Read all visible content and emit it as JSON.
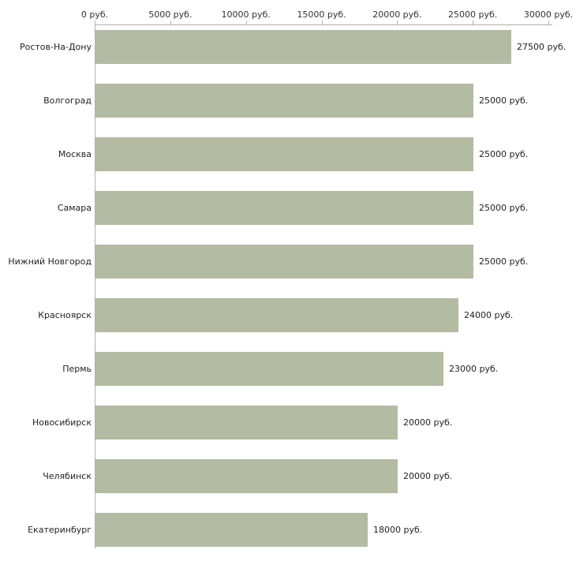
{
  "chart_data": {
    "type": "bar",
    "orientation": "horizontal",
    "title": "",
    "xlabel": "",
    "ylabel": "",
    "xlim": [
      0,
      30000
    ],
    "grid": false,
    "legend": "none",
    "bar_color": "#b3bba2",
    "x_ticks": [
      {
        "value": 0,
        "label": "0 руб."
      },
      {
        "value": 5000,
        "label": "5000 руб."
      },
      {
        "value": 10000,
        "label": "10000 руб."
      },
      {
        "value": 15000,
        "label": "15000 руб."
      },
      {
        "value": 20000,
        "label": "20000 руб."
      },
      {
        "value": 25000,
        "label": "25000 руб."
      },
      {
        "value": 30000,
        "label": "30000 руб."
      }
    ],
    "categories": [
      "Ростов-На-Дону",
      "Волгоград",
      "Москва",
      "Самара",
      "Нижний Новгород",
      "Красноярск",
      "Пермь",
      "Новосибирск",
      "Челябинск",
      "Екатеринбург"
    ],
    "values": [
      27500,
      25000,
      25000,
      25000,
      25000,
      24000,
      23000,
      20000,
      20000,
      18000
    ],
    "value_labels": [
      "27500 руб.",
      "25000 руб.",
      "25000 руб.",
      "25000 руб.",
      "25000 руб.",
      "24000 руб.",
      "23000 руб.",
      "20000 руб.",
      "20000 руб.",
      "18000 руб."
    ]
  }
}
